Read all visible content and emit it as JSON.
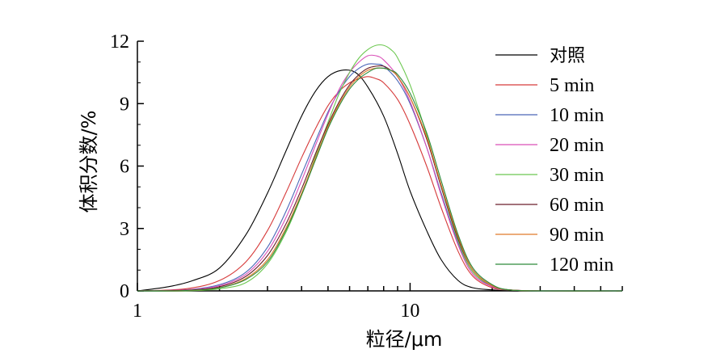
{
  "chart_data": {
    "type": "line",
    "xlabel": "粒径/μm",
    "ylabel": "体积分数/%",
    "xscale": "log",
    "xlim": [
      1,
      60
    ],
    "ylim": [
      0,
      12
    ],
    "xticks": [
      {
        "value": 1,
        "label": "1"
      },
      {
        "value": 10,
        "label": "10"
      }
    ],
    "yticks": [
      {
        "value": 0,
        "label": "0"
      },
      {
        "value": 3,
        "label": "3"
      },
      {
        "value": 6,
        "label": "6"
      },
      {
        "value": 9,
        "label": "9"
      },
      {
        "value": 12,
        "label": "12"
      }
    ],
    "grid": false,
    "legend_position": "right",
    "series": [
      {
        "name": "对照",
        "color": "#000000",
        "x": [
          1,
          1.3,
          1.6,
          2,
          2.5,
          3,
          3.5,
          4,
          4.5,
          5,
          5.6,
          6.3,
          7,
          8,
          9,
          10,
          11.5,
          13,
          15,
          17,
          20,
          23,
          30,
          60
        ],
        "y": [
          0.0,
          0.2,
          0.5,
          1.1,
          2.7,
          4.7,
          6.7,
          8.4,
          9.6,
          10.3,
          10.6,
          10.5,
          9.8,
          8.4,
          6.6,
          4.8,
          2.9,
          1.5,
          0.5,
          0.15,
          0.05,
          0.0,
          0.0,
          0.0
        ]
      },
      {
        "name": "5 min",
        "color": "#d63a3a",
        "x": [
          1,
          1.5,
          2,
          2.5,
          3,
          3.5,
          4,
          4.5,
          5,
          5.5,
          6,
          6.5,
          7,
          7.5,
          8,
          9,
          10,
          11.5,
          13,
          15,
          17,
          20,
          23,
          30,
          60
        ],
        "y": [
          0.0,
          0.1,
          0.5,
          1.4,
          2.9,
          4.7,
          6.4,
          7.8,
          8.9,
          9.6,
          10.0,
          10.2,
          10.3,
          10.2,
          10.0,
          9.2,
          8.0,
          6.0,
          4.0,
          1.9,
          0.7,
          0.15,
          0.05,
          0.0,
          0.0
        ]
      },
      {
        "name": "10 min",
        "color": "#4a66b8",
        "x": [
          1,
          1.5,
          2,
          2.5,
          3,
          3.5,
          4,
          4.5,
          5,
          5.5,
          6,
          6.5,
          7,
          7.5,
          8,
          9,
          10,
          11.5,
          13,
          15,
          17,
          20,
          23,
          30,
          60
        ],
        "y": [
          0.0,
          0.05,
          0.3,
          0.9,
          2.1,
          3.8,
          5.6,
          7.2,
          8.6,
          9.6,
          10.3,
          10.7,
          10.9,
          10.9,
          10.8,
          10.1,
          9.0,
          6.9,
          4.7,
          2.3,
          0.9,
          0.2,
          0.05,
          0.0,
          0.0
        ]
      },
      {
        "name": "20 min",
        "color": "#d94fb8",
        "x": [
          1,
          1.5,
          2,
          2.5,
          3,
          3.5,
          4,
          4.5,
          5,
          5.5,
          6,
          6.5,
          7,
          7.5,
          8,
          9,
          10,
          11.5,
          13,
          15,
          17,
          20,
          23,
          30,
          60
        ],
        "y": [
          0.0,
          0.05,
          0.25,
          0.8,
          1.9,
          3.5,
          5.3,
          7.0,
          8.5,
          9.7,
          10.5,
          11.0,
          11.3,
          11.3,
          11.1,
          10.3,
          9.1,
          6.9,
          4.6,
          2.2,
          0.8,
          0.2,
          0.05,
          0.0,
          0.0
        ]
      },
      {
        "name": "30 min",
        "color": "#6cc850",
        "x": [
          1,
          1.5,
          2,
          2.5,
          3,
          3.5,
          4,
          4.5,
          5,
          5.5,
          6,
          6.5,
          7,
          7.5,
          8,
          8.5,
          9,
          10,
          11.5,
          13,
          15,
          17,
          20,
          23,
          30,
          60
        ],
        "y": [
          0.0,
          0.0,
          0.1,
          0.4,
          1.3,
          2.8,
          4.6,
          6.5,
          8.1,
          9.5,
          10.5,
          11.2,
          11.6,
          11.8,
          11.8,
          11.6,
          11.2,
          9.9,
          7.5,
          5.0,
          2.4,
          0.9,
          0.25,
          0.05,
          0.0,
          0.0
        ]
      },
      {
        "name": "60 min",
        "color": "#6a1f2a",
        "x": [
          1,
          1.5,
          2,
          2.5,
          3,
          3.5,
          4,
          4.5,
          5,
          5.5,
          6,
          6.5,
          7,
          7.5,
          8,
          8.5,
          9,
          10,
          11.5,
          13,
          15,
          17,
          20,
          23,
          30,
          60
        ],
        "y": [
          0.0,
          0.03,
          0.2,
          0.7,
          1.7,
          3.2,
          4.9,
          6.6,
          8.0,
          9.1,
          9.9,
          10.4,
          10.7,
          10.8,
          10.8,
          10.6,
          10.3,
          9.3,
          7.3,
          5.0,
          2.5,
          1.0,
          0.25,
          0.05,
          0.0,
          0.0
        ]
      },
      {
        "name": "90 min",
        "color": "#e07a2a",
        "x": [
          1,
          1.5,
          2,
          2.5,
          3,
          3.5,
          4,
          4.5,
          5,
          5.5,
          6,
          6.5,
          7,
          7.5,
          8,
          8.5,
          9,
          10,
          11.5,
          13,
          15,
          17,
          20,
          23,
          30,
          60
        ],
        "y": [
          0.0,
          0.02,
          0.15,
          0.6,
          1.5,
          3.0,
          4.7,
          6.4,
          7.9,
          9.0,
          9.8,
          10.3,
          10.6,
          10.7,
          10.7,
          10.6,
          10.3,
          9.3,
          7.4,
          5.1,
          2.6,
          1.0,
          0.25,
          0.05,
          0.0,
          0.0
        ]
      },
      {
        "name": "120 min",
        "color": "#2e8a3a",
        "x": [
          1,
          1.5,
          2,
          2.5,
          3,
          3.5,
          4,
          4.5,
          5,
          5.5,
          6,
          6.5,
          7,
          7.5,
          8,
          8.5,
          9,
          10,
          11.5,
          13,
          15,
          17,
          20,
          23,
          30,
          60
        ],
        "y": [
          0.0,
          0.02,
          0.15,
          0.55,
          1.4,
          2.9,
          4.6,
          6.3,
          7.8,
          8.9,
          9.7,
          10.2,
          10.5,
          10.7,
          10.7,
          10.6,
          10.4,
          9.5,
          7.6,
          5.3,
          2.7,
          1.1,
          0.3,
          0.05,
          0.0,
          0.0
        ]
      }
    ]
  }
}
